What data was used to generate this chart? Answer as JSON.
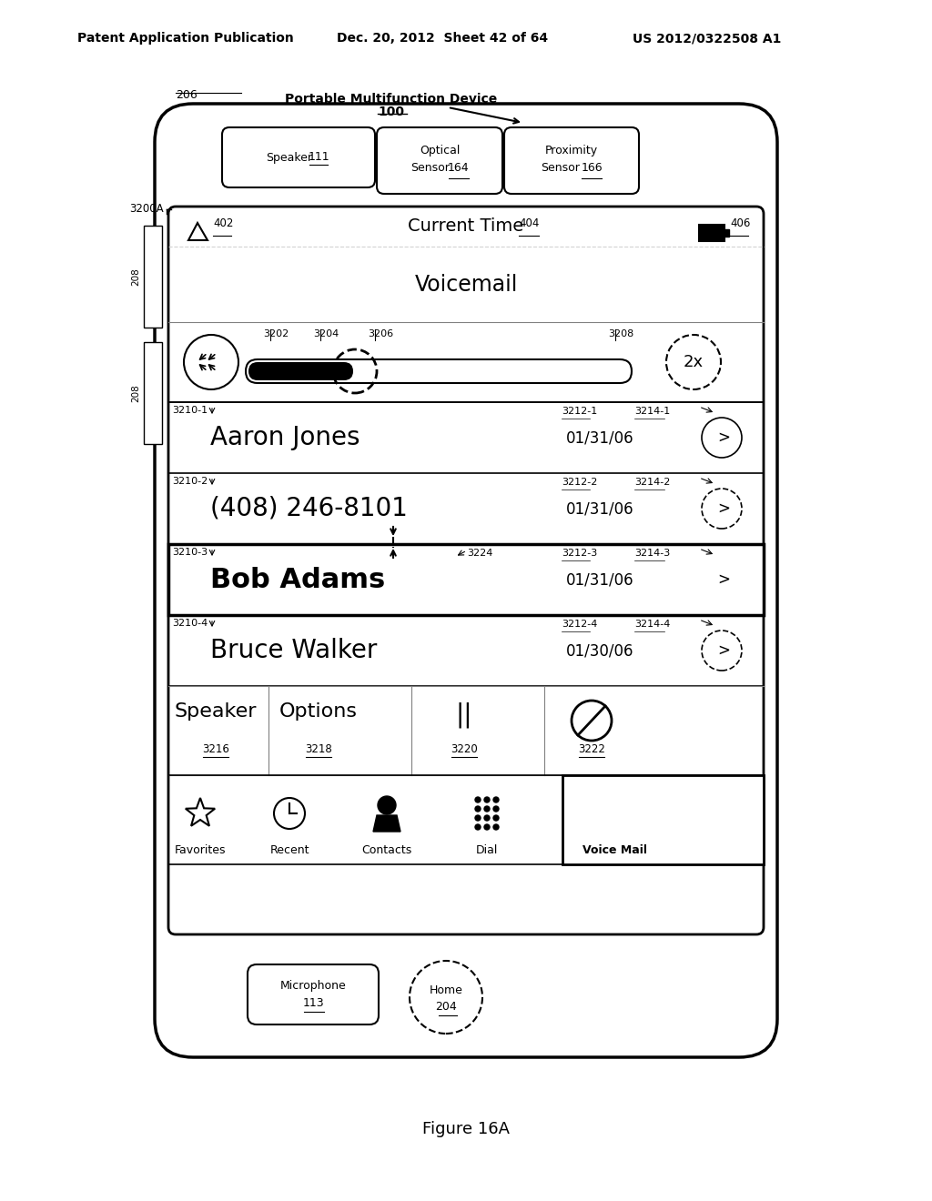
{
  "header_text": "Patent Application Publication",
  "header_date": "Dec. 20, 2012  Sheet 42 of 64",
  "header_patent": "US 2012/0322508 A1",
  "figure_label": "Figure 16A",
  "device_label": "Portable Multifunction Device",
  "device_num": "100",
  "device_ref": "206",
  "screen_ref": "3200A",
  "bracket_ref": "208",
  "voicemail_label": "Voicemail",
  "rewind_ref": "3202",
  "progress_filled_ref": "3204",
  "progress_thumb_ref": "3206",
  "progress_track_ref": "3208",
  "speed_label": "2x",
  "contact_rows": [
    {
      "ref": "3210-1",
      "name": "Aaron Jones",
      "date_ref": "3212-1",
      "date": "01/31/06",
      "nav_ref": "3214-1",
      "bold": false
    },
    {
      "ref": "3210-2",
      "name": "(408) 246-8101",
      "date_ref": "3212-2",
      "date": "01/31/06",
      "nav_ref": "3214-2",
      "bold": false
    },
    {
      "ref": "3210-3",
      "name": "Bob Adams",
      "date_ref": "3212-3",
      "date": "01/31/06",
      "nav_ref": "3214-3",
      "bold": true,
      "extra_ref": "3224"
    },
    {
      "ref": "3210-4",
      "name": "Bruce Walker",
      "date_ref": "3212-4",
      "date": "01/30/06",
      "nav_ref": "3214-4",
      "bold": false
    }
  ],
  "bottom_btns": [
    {
      "label": "Speaker",
      "ref": "3216"
    },
    {
      "label": "Options",
      "ref": "3218"
    },
    {
      "label": "||",
      "ref": "3220"
    },
    {
      "label": "no_symbol",
      "ref": "3222"
    }
  ],
  "tab_labels": [
    "Favorites",
    "Recent",
    "Contacts",
    "Dial",
    "Voice Mail"
  ],
  "microphone_label": "Microphone",
  "microphone_ref": "113",
  "home_label": "Home",
  "home_ref": "204",
  "bg_color": "#ffffff",
  "line_color": "#000000",
  "speaker_label": "Speaker",
  "speaker_ref": "111",
  "optical_label1": "Optical",
  "optical_label2": "Sensor",
  "optical_ref": "164",
  "proximity_label1": "Proximity",
  "proximity_label2": "Sensor",
  "proximity_ref": "166",
  "status_ref1": "402",
  "status_time": "Current Time",
  "status_ref2": "404",
  "status_ref3": "406"
}
